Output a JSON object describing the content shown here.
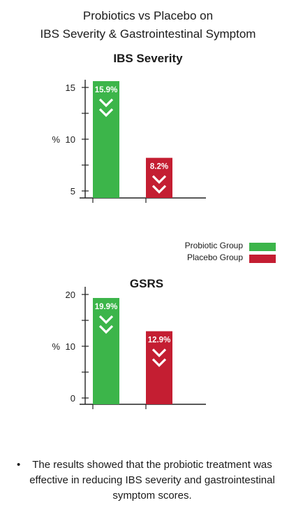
{
  "header": {
    "title_line1": "Probiotics vs Placebo on",
    "title_line2": "IBS Severity & Gastrointestinal Symptom"
  },
  "legend": {
    "items": [
      {
        "label": "Probiotic Group",
        "color": "#3cb54a"
      },
      {
        "label": "Placebo Group",
        "color": "#c41e32"
      }
    ]
  },
  "chart_data": [
    {
      "type": "bar",
      "title": "IBS Severity",
      "ylabel": "%",
      "ylim": [
        5,
        15
      ],
      "yticks": [
        5,
        10,
        15
      ],
      "categories": [
        "Probiotic Group",
        "Placebo Group"
      ],
      "values": [
        15.9,
        8.2
      ],
      "value_labels": [
        "15.9%",
        "8.2%"
      ],
      "colors": [
        "#3cb54a",
        "#c41e32"
      ],
      "annotations": "downward arrows on each bar"
    },
    {
      "type": "bar",
      "title": "GSRS",
      "ylabel": "%",
      "ylim": [
        0,
        20
      ],
      "yticks": [
        0,
        10,
        20
      ],
      "categories": [
        "Probiotic Group",
        "Placebo Group"
      ],
      "values": [
        19.9,
        12.9
      ],
      "value_labels": [
        "19.9%",
        "12.9%"
      ],
      "colors": [
        "#3cb54a",
        "#c41e32"
      ],
      "annotations": "downward arrows on each bar"
    }
  ],
  "footnote": {
    "bullet": "•",
    "text": "The results showed that the probiotic treatment was effective in reducing IBS severity and gastrointestinal symptom scores."
  }
}
